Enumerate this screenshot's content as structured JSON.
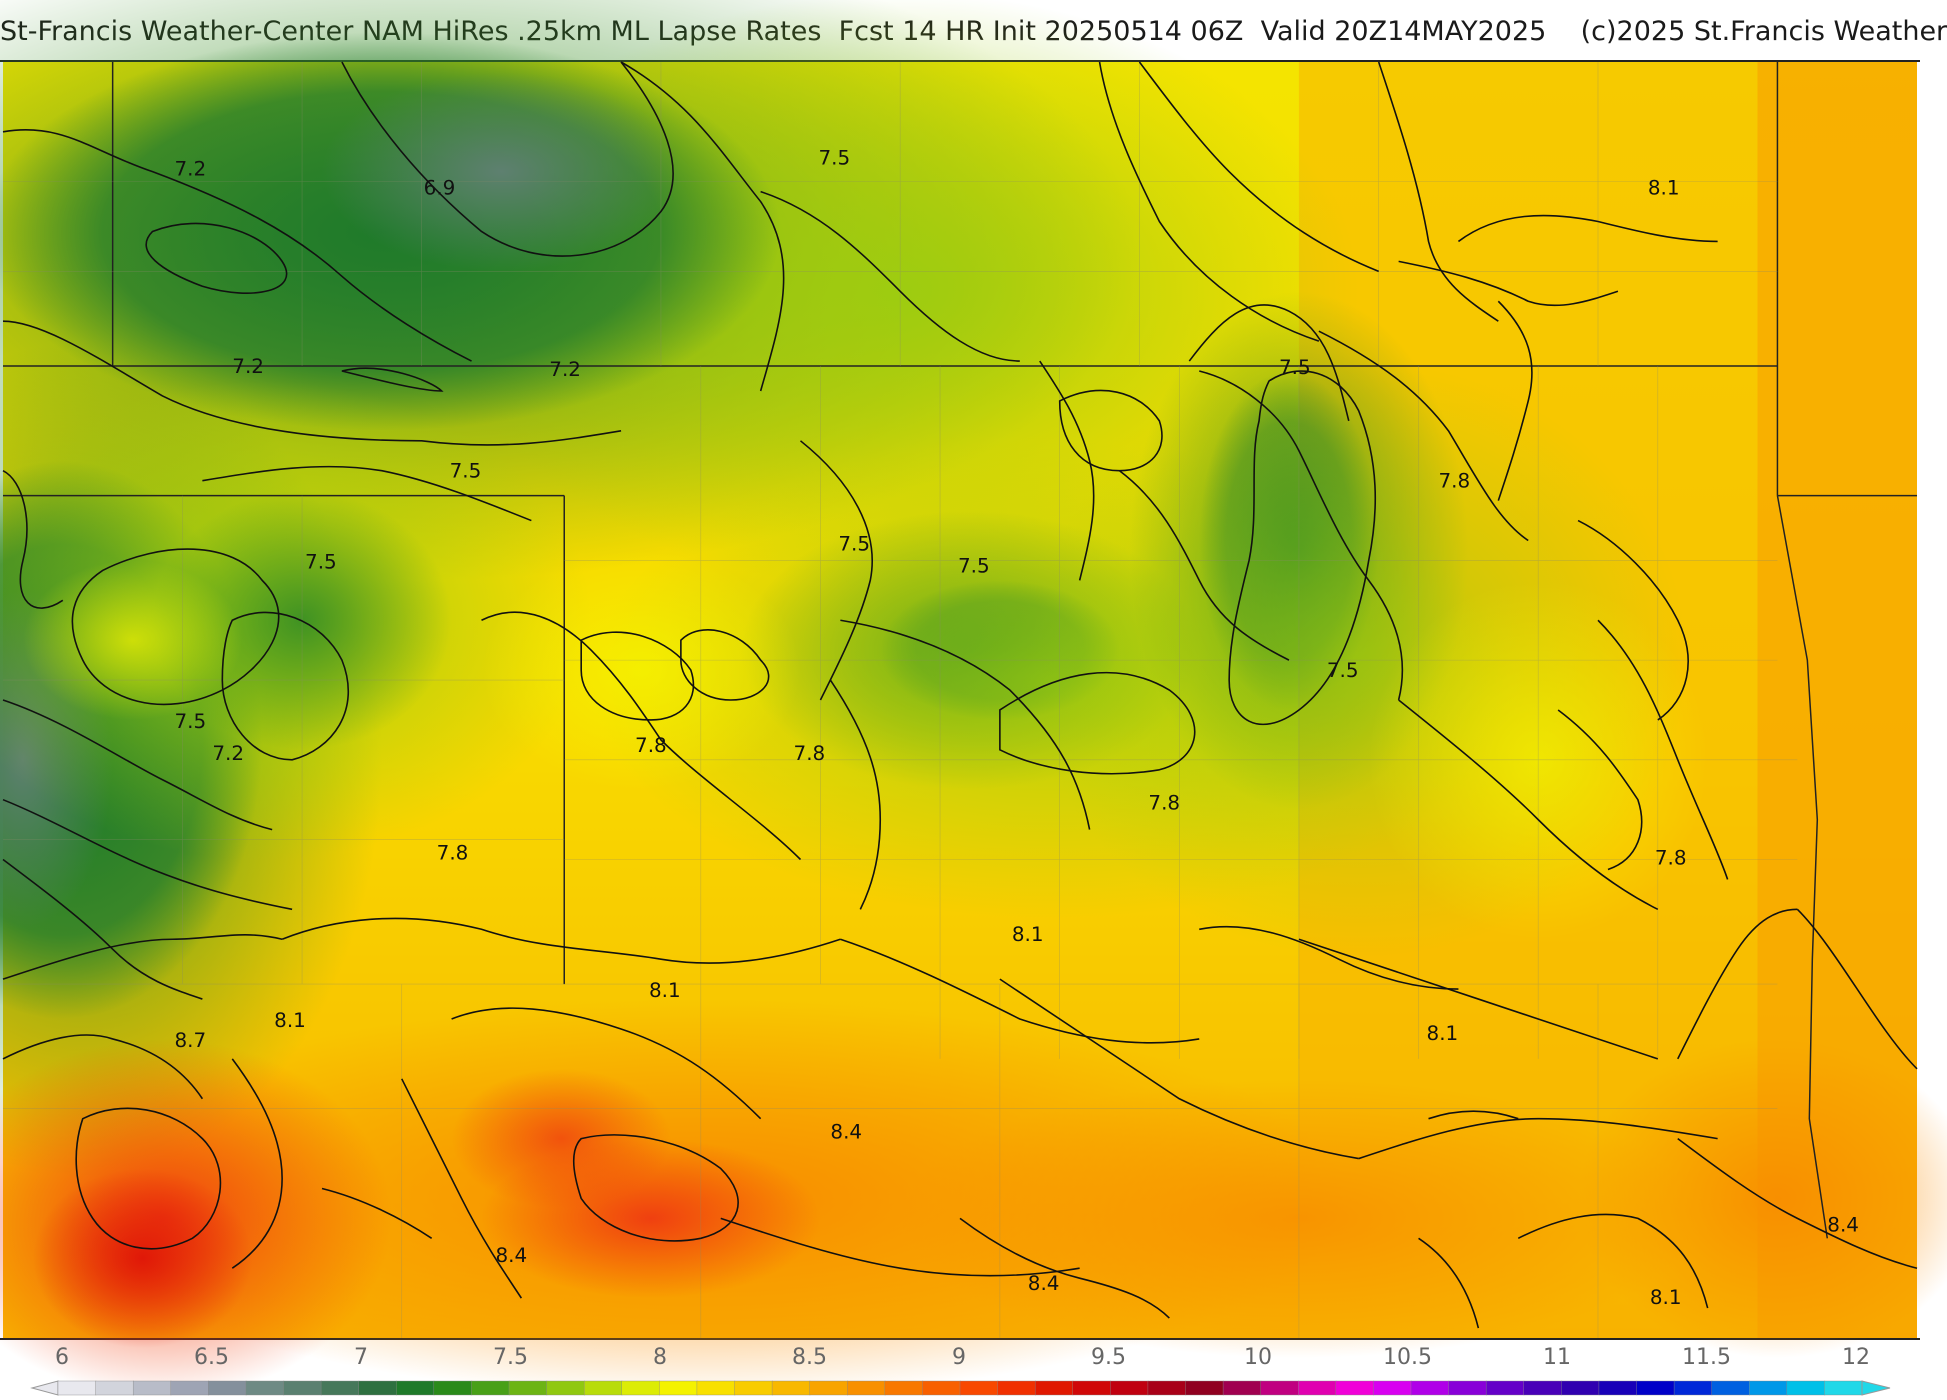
{
  "header": {
    "title": "St-Francis Weather-Center NAM HiRes .25km ML Lapse Rates  Fcst 14 HR Init 20250514 06Z  Valid 20Z14MAY2025    (c)2025 St.Francis Weather"
  },
  "map": {
    "contour_labels": [
      {
        "id": "c1",
        "text": "7.2"
      },
      {
        "id": "c2",
        "text": "6.9"
      },
      {
        "id": "c3",
        "text": "7.5"
      },
      {
        "id": "c4",
        "text": "8.1"
      },
      {
        "id": "c5",
        "text": "7.2"
      },
      {
        "id": "c6",
        "text": "7.2"
      },
      {
        "id": "c7",
        "text": "7.5"
      },
      {
        "id": "c8",
        "text": "7.5"
      },
      {
        "id": "c9",
        "text": "7.8"
      },
      {
        "id": "c10",
        "text": "7.5"
      },
      {
        "id": "c11",
        "text": "7.5"
      },
      {
        "id": "c12",
        "text": "7.5"
      },
      {
        "id": "c13",
        "text": "7.5"
      },
      {
        "id": "c14",
        "text": "7.5"
      },
      {
        "id": "c15",
        "text": "7.2"
      },
      {
        "id": "c16",
        "text": "7.8"
      },
      {
        "id": "c17",
        "text": "7.8"
      },
      {
        "id": "c18",
        "text": "7.8"
      },
      {
        "id": "c19",
        "text": "7.8"
      },
      {
        "id": "c20",
        "text": "7.8"
      },
      {
        "id": "c21",
        "text": "8.1"
      },
      {
        "id": "c22",
        "text": "8.1"
      },
      {
        "id": "c23",
        "text": "8.1"
      },
      {
        "id": "c24",
        "text": "8.7"
      },
      {
        "id": "c25",
        "text": "8.1"
      },
      {
        "id": "c26",
        "text": "8.4"
      },
      {
        "id": "c27",
        "text": "8.4"
      },
      {
        "id": "c28",
        "text": "8.4"
      },
      {
        "id": "c29",
        "text": "8.4"
      },
      {
        "id": "c30",
        "text": "8.1"
      }
    ]
  },
  "legend": {
    "ticks": [
      "6",
      "6.5",
      "7",
      "7.5",
      "8",
      "8.5",
      "9",
      "9.5",
      "10",
      "10.5",
      "11",
      "11.5",
      "12"
    ],
    "colors": [
      "#e8e8ee",
      "#d2d4dc",
      "#b8bcc8",
      "#9ea4b4",
      "#84909c",
      "#6e8a84",
      "#5a8070",
      "#46785a",
      "#2e7040",
      "#1f7a2a",
      "#2a8a1a",
      "#48a018",
      "#6cb414",
      "#90c810",
      "#b8dc0a",
      "#dcec06",
      "#f4f200",
      "#f8e000",
      "#f8cc00",
      "#f8b800",
      "#f8a400",
      "#f89000",
      "#f87800",
      "#f86000",
      "#f84800",
      "#f03000",
      "#e01800",
      "#d00808",
      "#c00010",
      "#a80018",
      "#900020",
      "#a00050",
      "#c00080",
      "#e000b0",
      "#f000d8",
      "#d800f0",
      "#b000e8",
      "#8800d8",
      "#6400c8",
      "#4800b8",
      "#3000b0",
      "#1800b8",
      "#0000c8",
      "#0028d8",
      "#0060e0",
      "#0098e8",
      "#00c0e8",
      "#20d8e8"
    ]
  }
}
